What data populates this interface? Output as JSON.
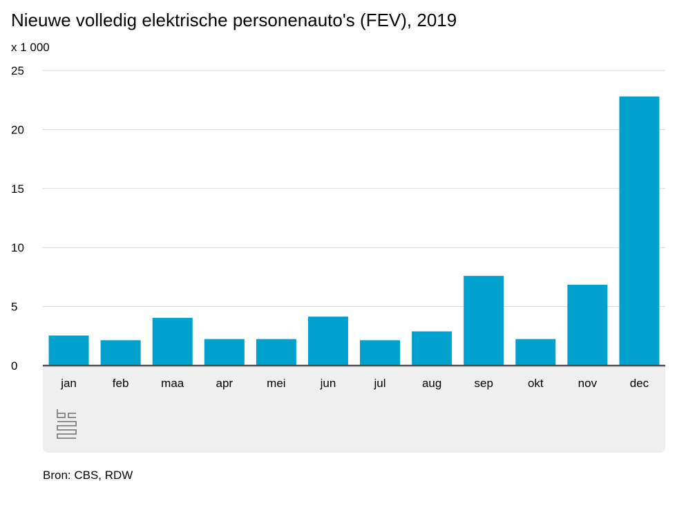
{
  "chart_data": {
    "type": "bar",
    "title": "Nieuwe volledig elektrische personenauto's (FEV), 2019",
    "unit_label": "x 1 000",
    "categories": [
      "jan",
      "feb",
      "maa",
      "apr",
      "mei",
      "jun",
      "jul",
      "aug",
      "sep",
      "okt",
      "nov",
      "dec"
    ],
    "values": [
      2.55,
      2.15,
      4.05,
      2.25,
      2.25,
      4.15,
      2.15,
      2.9,
      7.6,
      2.25,
      6.85,
      22.8
    ],
    "ylim": [
      0,
      25
    ],
    "yticks": [
      0,
      5,
      10,
      15,
      20,
      25
    ],
    "ytick_labels": [
      "0",
      "5",
      "10",
      "15",
      "20",
      "25"
    ],
    "bar_color": "#00a1cd",
    "grid": true,
    "legend": "none"
  },
  "source": "Bron: CBS, RDW",
  "logo_icon": "cbs-logo-icon"
}
